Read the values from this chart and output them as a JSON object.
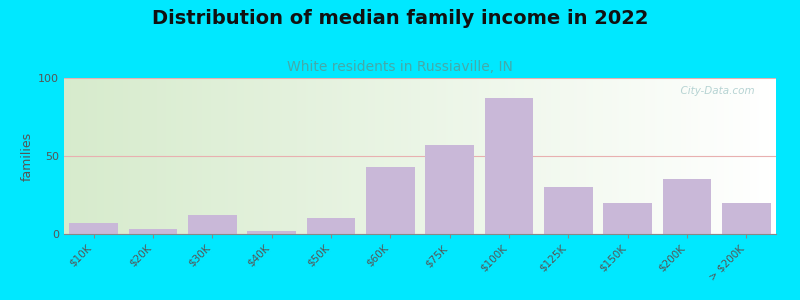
{
  "title": "Distribution of median family income in 2022",
  "subtitle": "White residents in Russiaville, IN",
  "title_fontsize": 14,
  "subtitle_fontsize": 10,
  "subtitle_color": "#44aaaa",
  "ylabel": "families",
  "ylabel_fontsize": 9,
  "categories": [
    "$10K",
    "$20K",
    "$30K",
    "$40K",
    "$50K",
    "$60K",
    "$75K",
    "$100K",
    "$125K",
    "$150K",
    "$200K",
    "> $200K"
  ],
  "values": [
    7,
    3,
    12,
    2,
    10,
    43,
    57,
    87,
    30,
    20,
    35,
    20
  ],
  "bar_color": "#c9b8d8",
  "ylim": [
    0,
    100
  ],
  "yticks": [
    0,
    50,
    100
  ],
  "background_outer": "#00e8ff",
  "grid_color": "#e8b0b0",
  "grid_linewidth": 0.8,
  "watermark": "  City-Data.com",
  "watermark_color": "#aacccc"
}
